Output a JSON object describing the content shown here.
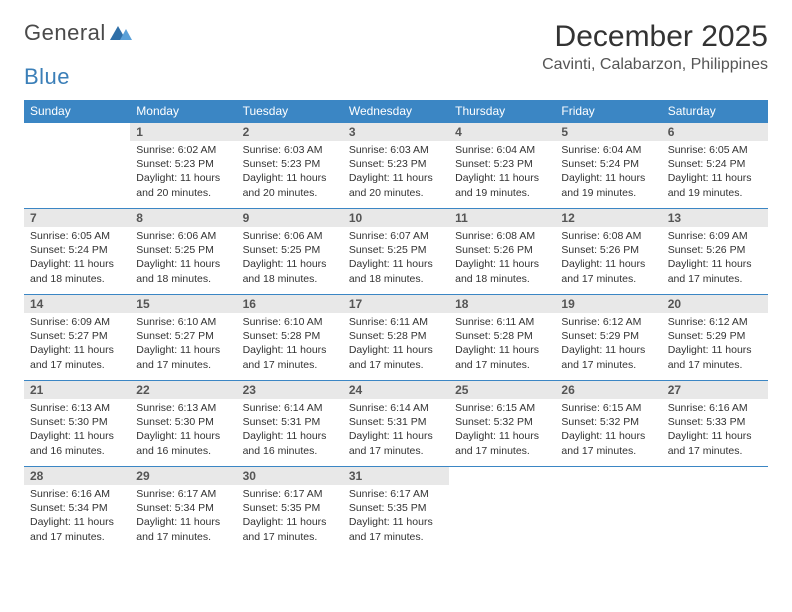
{
  "logo": {
    "word1": "General",
    "word2": "Blue"
  },
  "title": "December 2025",
  "location": "Cavinti, Calabarzon, Philippines",
  "colors": {
    "header_bg": "#3b86c4",
    "header_fg": "#ffffff",
    "daynum_bg": "#e8e8e8",
    "rule": "#3b86c4",
    "logo_gray": "#4a4a4a",
    "logo_blue": "#3b7fb8"
  },
  "weekdays": [
    "Sunday",
    "Monday",
    "Tuesday",
    "Wednesday",
    "Thursday",
    "Friday",
    "Saturday"
  ],
  "weeks": [
    [
      {
        "n": "",
        "sunrise": "",
        "sunset": "",
        "daylight": ""
      },
      {
        "n": "1",
        "sunrise": "Sunrise: 6:02 AM",
        "sunset": "Sunset: 5:23 PM",
        "daylight": "Daylight: 11 hours and 20 minutes."
      },
      {
        "n": "2",
        "sunrise": "Sunrise: 6:03 AM",
        "sunset": "Sunset: 5:23 PM",
        "daylight": "Daylight: 11 hours and 20 minutes."
      },
      {
        "n": "3",
        "sunrise": "Sunrise: 6:03 AM",
        "sunset": "Sunset: 5:23 PM",
        "daylight": "Daylight: 11 hours and 20 minutes."
      },
      {
        "n": "4",
        "sunrise": "Sunrise: 6:04 AM",
        "sunset": "Sunset: 5:23 PM",
        "daylight": "Daylight: 11 hours and 19 minutes."
      },
      {
        "n": "5",
        "sunrise": "Sunrise: 6:04 AM",
        "sunset": "Sunset: 5:24 PM",
        "daylight": "Daylight: 11 hours and 19 minutes."
      },
      {
        "n": "6",
        "sunrise": "Sunrise: 6:05 AM",
        "sunset": "Sunset: 5:24 PM",
        "daylight": "Daylight: 11 hours and 19 minutes."
      }
    ],
    [
      {
        "n": "7",
        "sunrise": "Sunrise: 6:05 AM",
        "sunset": "Sunset: 5:24 PM",
        "daylight": "Daylight: 11 hours and 18 minutes."
      },
      {
        "n": "8",
        "sunrise": "Sunrise: 6:06 AM",
        "sunset": "Sunset: 5:25 PM",
        "daylight": "Daylight: 11 hours and 18 minutes."
      },
      {
        "n": "9",
        "sunrise": "Sunrise: 6:06 AM",
        "sunset": "Sunset: 5:25 PM",
        "daylight": "Daylight: 11 hours and 18 minutes."
      },
      {
        "n": "10",
        "sunrise": "Sunrise: 6:07 AM",
        "sunset": "Sunset: 5:25 PM",
        "daylight": "Daylight: 11 hours and 18 minutes."
      },
      {
        "n": "11",
        "sunrise": "Sunrise: 6:08 AM",
        "sunset": "Sunset: 5:26 PM",
        "daylight": "Daylight: 11 hours and 18 minutes."
      },
      {
        "n": "12",
        "sunrise": "Sunrise: 6:08 AM",
        "sunset": "Sunset: 5:26 PM",
        "daylight": "Daylight: 11 hours and 17 minutes."
      },
      {
        "n": "13",
        "sunrise": "Sunrise: 6:09 AM",
        "sunset": "Sunset: 5:26 PM",
        "daylight": "Daylight: 11 hours and 17 minutes."
      }
    ],
    [
      {
        "n": "14",
        "sunrise": "Sunrise: 6:09 AM",
        "sunset": "Sunset: 5:27 PM",
        "daylight": "Daylight: 11 hours and 17 minutes."
      },
      {
        "n": "15",
        "sunrise": "Sunrise: 6:10 AM",
        "sunset": "Sunset: 5:27 PM",
        "daylight": "Daylight: 11 hours and 17 minutes."
      },
      {
        "n": "16",
        "sunrise": "Sunrise: 6:10 AM",
        "sunset": "Sunset: 5:28 PM",
        "daylight": "Daylight: 11 hours and 17 minutes."
      },
      {
        "n": "17",
        "sunrise": "Sunrise: 6:11 AM",
        "sunset": "Sunset: 5:28 PM",
        "daylight": "Daylight: 11 hours and 17 minutes."
      },
      {
        "n": "18",
        "sunrise": "Sunrise: 6:11 AM",
        "sunset": "Sunset: 5:28 PM",
        "daylight": "Daylight: 11 hours and 17 minutes."
      },
      {
        "n": "19",
        "sunrise": "Sunrise: 6:12 AM",
        "sunset": "Sunset: 5:29 PM",
        "daylight": "Daylight: 11 hours and 17 minutes."
      },
      {
        "n": "20",
        "sunrise": "Sunrise: 6:12 AM",
        "sunset": "Sunset: 5:29 PM",
        "daylight": "Daylight: 11 hours and 17 minutes."
      }
    ],
    [
      {
        "n": "21",
        "sunrise": "Sunrise: 6:13 AM",
        "sunset": "Sunset: 5:30 PM",
        "daylight": "Daylight: 11 hours and 16 minutes."
      },
      {
        "n": "22",
        "sunrise": "Sunrise: 6:13 AM",
        "sunset": "Sunset: 5:30 PM",
        "daylight": "Daylight: 11 hours and 16 minutes."
      },
      {
        "n": "23",
        "sunrise": "Sunrise: 6:14 AM",
        "sunset": "Sunset: 5:31 PM",
        "daylight": "Daylight: 11 hours and 16 minutes."
      },
      {
        "n": "24",
        "sunrise": "Sunrise: 6:14 AM",
        "sunset": "Sunset: 5:31 PM",
        "daylight": "Daylight: 11 hours and 17 minutes."
      },
      {
        "n": "25",
        "sunrise": "Sunrise: 6:15 AM",
        "sunset": "Sunset: 5:32 PM",
        "daylight": "Daylight: 11 hours and 17 minutes."
      },
      {
        "n": "26",
        "sunrise": "Sunrise: 6:15 AM",
        "sunset": "Sunset: 5:32 PM",
        "daylight": "Daylight: 11 hours and 17 minutes."
      },
      {
        "n": "27",
        "sunrise": "Sunrise: 6:16 AM",
        "sunset": "Sunset: 5:33 PM",
        "daylight": "Daylight: 11 hours and 17 minutes."
      }
    ],
    [
      {
        "n": "28",
        "sunrise": "Sunrise: 6:16 AM",
        "sunset": "Sunset: 5:34 PM",
        "daylight": "Daylight: 11 hours and 17 minutes."
      },
      {
        "n": "29",
        "sunrise": "Sunrise: 6:17 AM",
        "sunset": "Sunset: 5:34 PM",
        "daylight": "Daylight: 11 hours and 17 minutes."
      },
      {
        "n": "30",
        "sunrise": "Sunrise: 6:17 AM",
        "sunset": "Sunset: 5:35 PM",
        "daylight": "Daylight: 11 hours and 17 minutes."
      },
      {
        "n": "31",
        "sunrise": "Sunrise: 6:17 AM",
        "sunset": "Sunset: 5:35 PM",
        "daylight": "Daylight: 11 hours and 17 minutes."
      },
      {
        "n": "",
        "sunrise": "",
        "sunset": "",
        "daylight": ""
      },
      {
        "n": "",
        "sunrise": "",
        "sunset": "",
        "daylight": ""
      },
      {
        "n": "",
        "sunrise": "",
        "sunset": "",
        "daylight": ""
      }
    ]
  ]
}
